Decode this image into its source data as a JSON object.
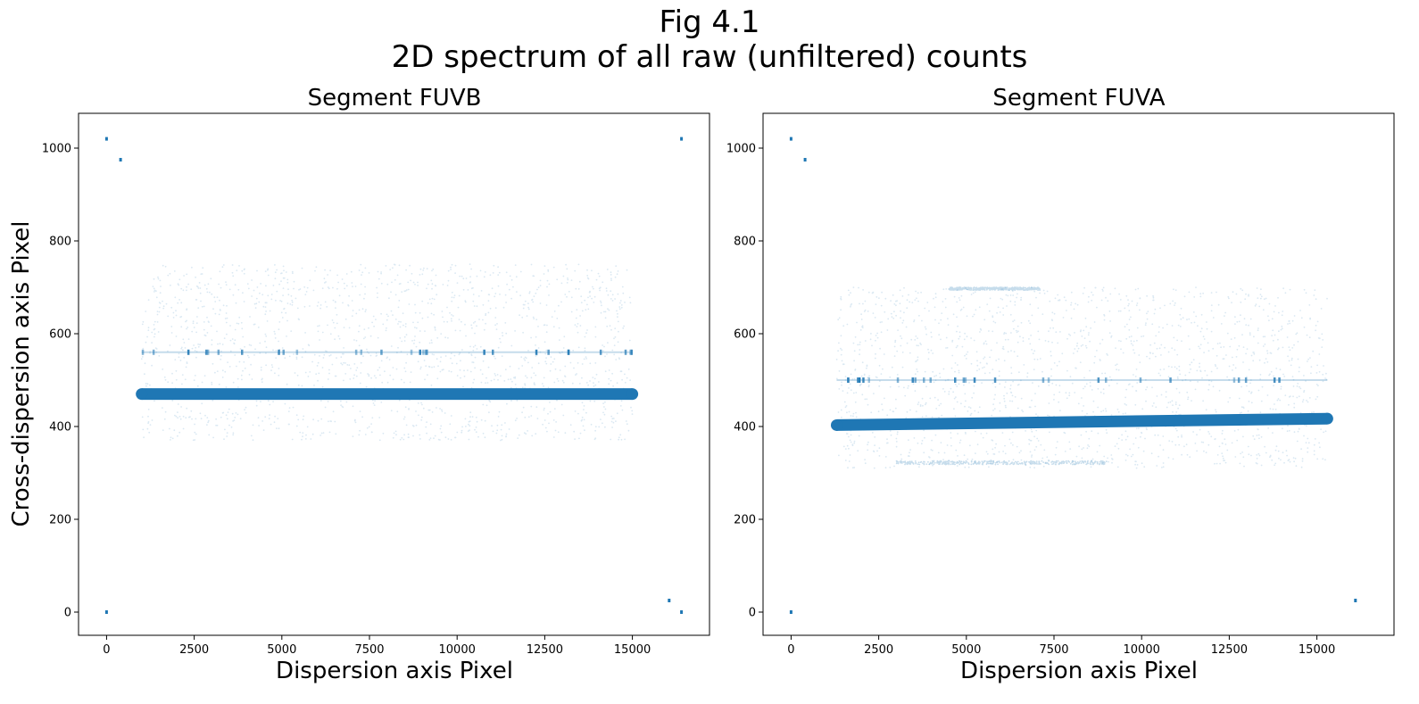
{
  "figure": {
    "title_line1": "Fig 4.1",
    "title_line2": "2D spectrum of all raw (unfiltered) counts",
    "marker_color": "#1f77b4"
  },
  "chart_data": [
    {
      "type": "scatter",
      "title": "Segment FUVB",
      "xlabel": "Dispersion axis Pixel",
      "ylabel": "Cross-dispersion axis Pixel",
      "xlim": [
        -800,
        17200
      ],
      "ylim": [
        -50,
        1075
      ],
      "xticks": [
        0,
        2500,
        5000,
        7500,
        10000,
        12500,
        15000
      ],
      "yticks": [
        0,
        200,
        400,
        600,
        800,
        1000
      ],
      "xtick_labels": [
        "0",
        "2500",
        "5000",
        "7500",
        "10000",
        "12500",
        "15000"
      ],
      "ytick_labels": [
        "0",
        "200",
        "400",
        "600",
        "800",
        "1000"
      ],
      "spectrum_trace": {
        "x_start": 1000,
        "x_end": 15000,
        "y_start": 470,
        "y_end": 470
      },
      "scatter_box": {
        "x_min": 1000,
        "x_max": 15000,
        "y_min": 370,
        "y_max": 750
      },
      "secondary_line": {
        "x_min": 1000,
        "x_max": 15000,
        "y": 560
      },
      "corner_points": [
        {
          "x": 0,
          "y": 1020
        },
        {
          "x": 400,
          "y": 975
        },
        {
          "x": 16400,
          "y": 1020
        },
        {
          "x": 0,
          "y": 0
        },
        {
          "x": 16050,
          "y": 25
        },
        {
          "x": 16400,
          "y": 0
        }
      ]
    },
    {
      "type": "scatter",
      "title": "Segment FUVA",
      "xlabel": "Dispersion axis Pixel",
      "ylabel": "",
      "xlim": [
        -800,
        17200
      ],
      "ylim": [
        -50,
        1075
      ],
      "xticks": [
        0,
        2500,
        5000,
        7500,
        10000,
        12500,
        15000
      ],
      "yticks": [
        0,
        200,
        400,
        600,
        800,
        1000
      ],
      "xtick_labels": [
        "0",
        "2500",
        "5000",
        "7500",
        "10000",
        "12500",
        "15000"
      ],
      "ytick_labels": [
        "0",
        "200",
        "400",
        "600",
        "800",
        "1000"
      ],
      "spectrum_trace": {
        "x_start": 1300,
        "x_end": 15300,
        "y_start": 403,
        "y_end": 417
      },
      "scatter_box": {
        "x_min": 1300,
        "x_max": 15300,
        "y_min": 310,
        "y_max": 700
      },
      "secondary_line": {
        "x_min": 1300,
        "x_max": 15300,
        "y": 500
      },
      "corner_points": [
        {
          "x": 0,
          "y": 1020
        },
        {
          "x": 400,
          "y": 975
        },
        {
          "x": 0,
          "y": 0
        },
        {
          "x": 16100,
          "y": 25
        }
      ]
    }
  ]
}
